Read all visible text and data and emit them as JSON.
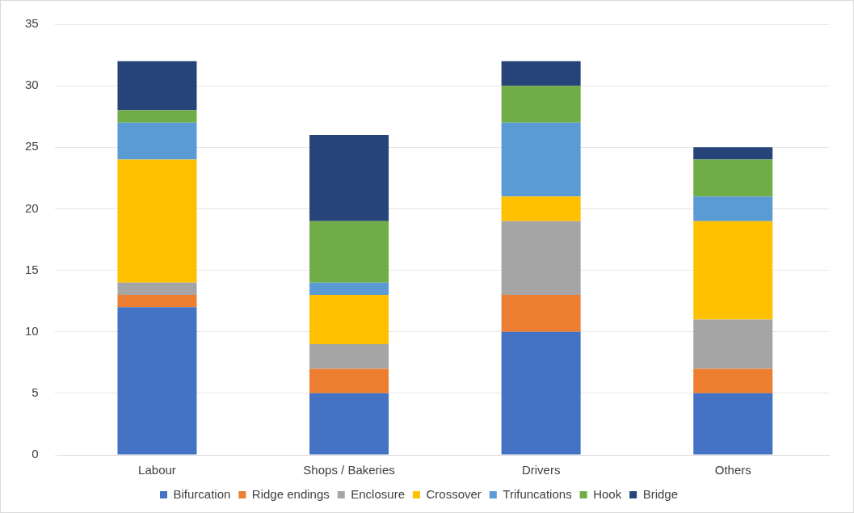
{
  "chart_data": {
    "type": "bar",
    "stacked": true,
    "categories": [
      "Labour",
      "Shops / Bakeries",
      "Drivers",
      "Others"
    ],
    "series": [
      {
        "name": "Bifurcation",
        "color": "#4472c4",
        "values": [
          12,
          5,
          10,
          5
        ]
      },
      {
        "name": "Ridge endings",
        "color": "#ed7d31",
        "values": [
          1,
          2,
          3,
          2
        ]
      },
      {
        "name": "Enclosure",
        "color": "#a5a5a5",
        "values": [
          1,
          2,
          6,
          4
        ]
      },
      {
        "name": "Crossover",
        "color": "#ffc000",
        "values": [
          10,
          4,
          2,
          8
        ]
      },
      {
        "name": "Trifuncations",
        "color": "#5b9bd5",
        "values": [
          3,
          1,
          6,
          2
        ]
      },
      {
        "name": "Hook",
        "color": "#70ad47",
        "values": [
          1,
          5,
          3,
          3
        ]
      },
      {
        "name": "Bridge",
        "color": "#264478",
        "values": [
          4,
          7,
          2,
          1
        ]
      }
    ],
    "ylim": [
      0,
      35
    ],
    "yticks": [
      0,
      5,
      10,
      15,
      20,
      25,
      30,
      35
    ],
    "grid": "y",
    "legend": "bottom"
  }
}
